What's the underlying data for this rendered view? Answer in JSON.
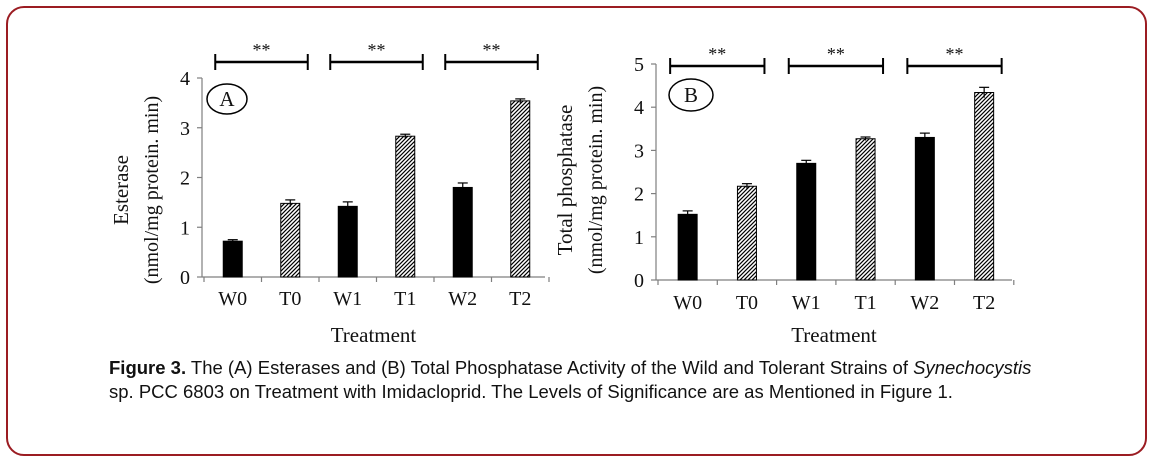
{
  "caption": {
    "label": "Figure 3.",
    "text_1": " The (A) Esterases and (B) Total Phosphatase Activity of the Wild and Tolerant Strains of ",
    "species": "Synechocystis",
    "text_2": " sp. PCC 6803 on Treatment with Imidacloprid. The Levels of Significance are as Mentioned in Figure 1."
  },
  "chart_data": [
    {
      "type": "bar",
      "panel_label": "A",
      "categories": [
        "W0",
        "T0",
        "W1",
        "T1",
        "W2",
        "T2"
      ],
      "values": [
        0.72,
        1.48,
        1.42,
        2.83,
        1.8,
        3.54
      ],
      "errors": [
        0.03,
        0.07,
        0.09,
        0.04,
        0.09,
        0.04
      ],
      "patterns": [
        "solid",
        "hatched",
        "solid",
        "hatched",
        "solid",
        "hatched"
      ],
      "xlabel": "Treatment",
      "ylabel_line1": "Esterase",
      "ylabel_line2": "(nmol/mg protein. min)",
      "ylim": [
        0,
        4
      ],
      "yticks": [
        0,
        1,
        2,
        3,
        4
      ],
      "significance": [
        {
          "from": 0,
          "to": 1,
          "label": "**"
        },
        {
          "from": 2,
          "to": 3,
          "label": "**"
        },
        {
          "from": 4,
          "to": 5,
          "label": "**"
        }
      ],
      "colors": {
        "solid": "#000000",
        "hatch": "#000000"
      }
    },
    {
      "type": "bar",
      "panel_label": "B",
      "categories": [
        "W0",
        "T0",
        "W1",
        "T1",
        "W2",
        "T2"
      ],
      "values": [
        1.52,
        2.17,
        2.7,
        3.27,
        3.3,
        4.34
      ],
      "errors": [
        0.08,
        0.06,
        0.07,
        0.04,
        0.1,
        0.12
      ],
      "patterns": [
        "solid",
        "hatched",
        "solid",
        "hatched",
        "solid",
        "hatched"
      ],
      "xlabel": "Treatment",
      "ylabel_line1": "Total phosphatase",
      "ylabel_line2": "(nmol/mg protein. min)",
      "ylim": [
        0,
        5
      ],
      "yticks": [
        0,
        1,
        2,
        3,
        4,
        5
      ],
      "significance": [
        {
          "from": 0,
          "to": 1,
          "label": "**"
        },
        {
          "from": 2,
          "to": 3,
          "label": "**"
        },
        {
          "from": 4,
          "to": 5,
          "label": "**"
        }
      ],
      "colors": {
        "solid": "#000000",
        "hatch": "#000000"
      }
    }
  ]
}
